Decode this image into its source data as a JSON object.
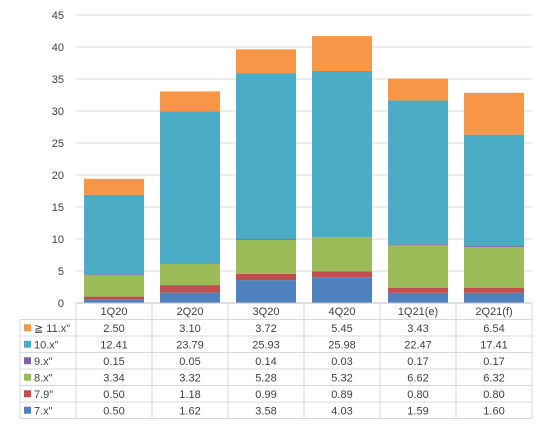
{
  "chart_data": {
    "type": "bar",
    "stacked": true,
    "categories": [
      "1Q20",
      "2Q20",
      "3Q20",
      "4Q20",
      "1Q21(e)",
      "2Q21(f)"
    ],
    "ylim": [
      0,
      45
    ],
    "yticks": [
      0,
      5,
      10,
      15,
      20,
      25,
      30,
      35,
      40,
      45
    ],
    "grid": true,
    "legend_placement": "left-of-table",
    "series": [
      {
        "name": "7.x\"",
        "color": "#4f81bd",
        "values": [
          0.5,
          1.62,
          3.58,
          4.03,
          1.59,
          1.6
        ],
        "labels": [
          "0.50",
          "1.62",
          "3.58",
          "4.03",
          "1.59",
          "1.60"
        ]
      },
      {
        "name": "7.9\"",
        "color": "#c0504d",
        "values": [
          0.5,
          1.18,
          0.99,
          0.89,
          0.8,
          0.8
        ],
        "labels": [
          "0.50",
          "1.18",
          "0.99",
          "0.89",
          "0.80",
          "0.80"
        ]
      },
      {
        "name": "8.x\"",
        "color": "#9bbb59",
        "values": [
          3.34,
          3.32,
          5.28,
          5.32,
          6.62,
          6.32
        ],
        "labels": [
          "3.34",
          "3.32",
          "5.28",
          "5.32",
          "6.62",
          "6.32"
        ]
      },
      {
        "name": "9.x\"",
        "color": "#8064a2",
        "values": [
          0.15,
          0.05,
          0.14,
          0.03,
          0.17,
          0.17
        ],
        "labels": [
          "0.15",
          "0.05",
          "0.14",
          "0.03",
          "0.17",
          "0.17"
        ]
      },
      {
        "name": "10.x\"",
        "color": "#4bacc6",
        "values": [
          12.41,
          23.79,
          25.93,
          25.98,
          22.47,
          17.41
        ],
        "labels": [
          "12.41",
          "23.79",
          "25.93",
          "25.98",
          "22.47",
          "17.41"
        ]
      },
      {
        "name": "≧ 11.x\"",
        "color": "#f79646",
        "values": [
          2.5,
          3.1,
          3.72,
          5.45,
          3.43,
          6.54
        ],
        "labels": [
          "2.50",
          "3.10",
          "3.72",
          "5.45",
          "3.43",
          "6.54"
        ]
      }
    ]
  }
}
